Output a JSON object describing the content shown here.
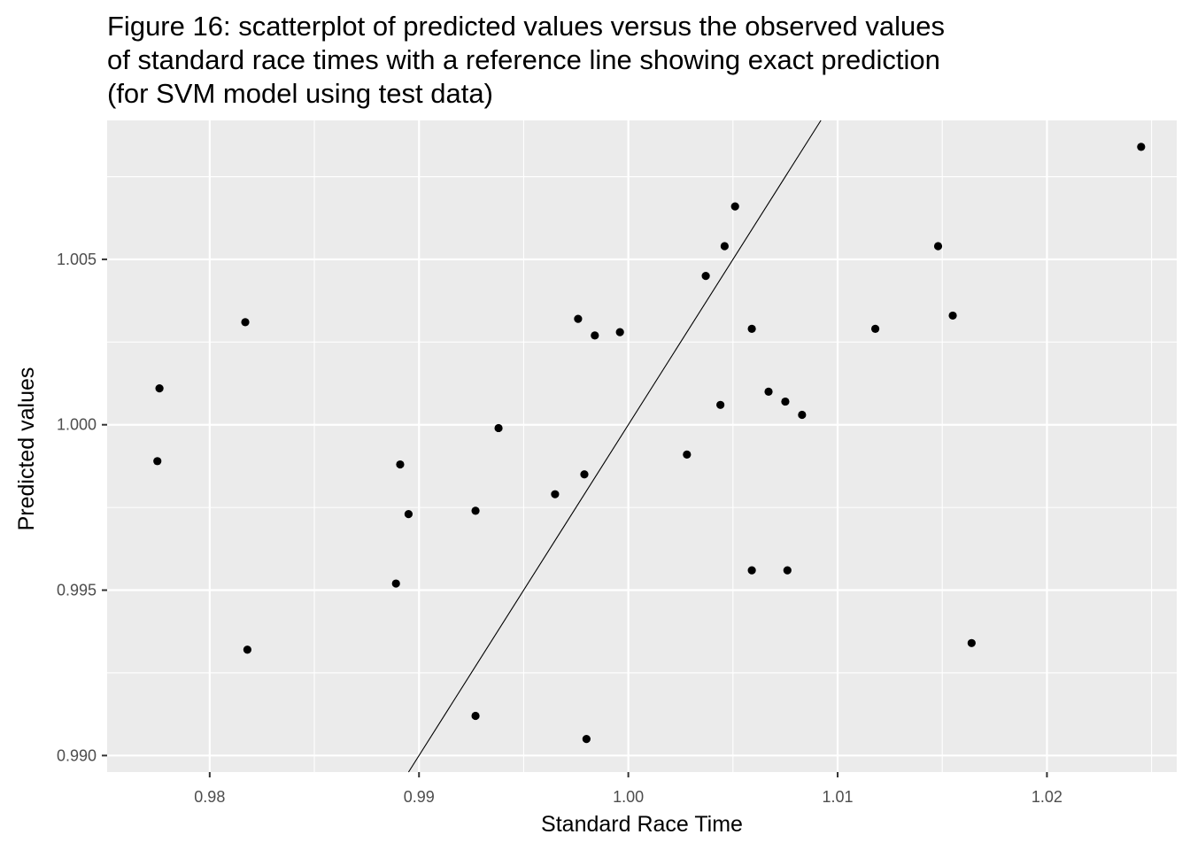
{
  "chart_data": {
    "type": "scatter",
    "title_lines": [
      "Figure 16: scatterplot of predicted values versus the observed values",
      " of standard race times with a reference line showing exact prediction",
      " (for SVM model using test data)"
    ],
    "xlabel": "Standard Race Time",
    "ylabel": "Predicted values",
    "xlim": [
      0.9751,
      1.0262
    ],
    "ylim": [
      0.9895,
      1.0092
    ],
    "x_ticks": [
      0.98,
      0.99,
      1.0,
      1.01,
      1.02
    ],
    "x_tick_labels": [
      "0.98",
      "0.99",
      "1.00",
      "1.01",
      "1.02"
    ],
    "y_ticks": [
      0.99,
      0.995,
      1.0,
      1.005
    ],
    "y_tick_labels": [
      "0.990",
      "0.995",
      "1.000",
      "1.005"
    ],
    "grid": true,
    "reference_line": {
      "slope": 1,
      "intercept": 0
    },
    "colors": {
      "panel": "#ebebeb",
      "grid": "#ffffff",
      "point": "#000000",
      "line": "#000000"
    },
    "points": [
      {
        "x": 0.9775,
        "y": 0.9989
      },
      {
        "x": 0.9776,
        "y": 1.0011
      },
      {
        "x": 0.9817,
        "y": 1.0031
      },
      {
        "x": 0.9818,
        "y": 0.9932
      },
      {
        "x": 0.9889,
        "y": 0.9952
      },
      {
        "x": 0.9891,
        "y": 0.9988
      },
      {
        "x": 0.9895,
        "y": 0.9973
      },
      {
        "x": 0.9927,
        "y": 0.9912
      },
      {
        "x": 0.9927,
        "y": 0.9974
      },
      {
        "x": 0.9938,
        "y": 0.9999
      },
      {
        "x": 0.9965,
        "y": 0.9979
      },
      {
        "x": 0.9976,
        "y": 1.0032
      },
      {
        "x": 0.9979,
        "y": 0.9985
      },
      {
        "x": 0.998,
        "y": 0.9905
      },
      {
        "x": 0.9984,
        "y": 1.0027
      },
      {
        "x": 0.9996,
        "y": 1.0028
      },
      {
        "x": 1.0028,
        "y": 0.9991
      },
      {
        "x": 1.0037,
        "y": 1.0045
      },
      {
        "x": 1.0044,
        "y": 1.0006
      },
      {
        "x": 1.0046,
        "y": 1.0054
      },
      {
        "x": 1.0051,
        "y": 1.0066
      },
      {
        "x": 1.0059,
        "y": 1.0029
      },
      {
        "x": 1.0059,
        "y": 0.9956
      },
      {
        "x": 1.0067,
        "y": 1.001
      },
      {
        "x": 1.0075,
        "y": 1.0007
      },
      {
        "x": 1.0076,
        "y": 0.9956
      },
      {
        "x": 1.0083,
        "y": 1.0003
      },
      {
        "x": 1.0118,
        "y": 1.0029
      },
      {
        "x": 1.0148,
        "y": 1.0054
      },
      {
        "x": 1.0155,
        "y": 1.0033
      },
      {
        "x": 1.0164,
        "y": 0.9934
      },
      {
        "x": 1.0245,
        "y": 1.0084
      }
    ]
  }
}
